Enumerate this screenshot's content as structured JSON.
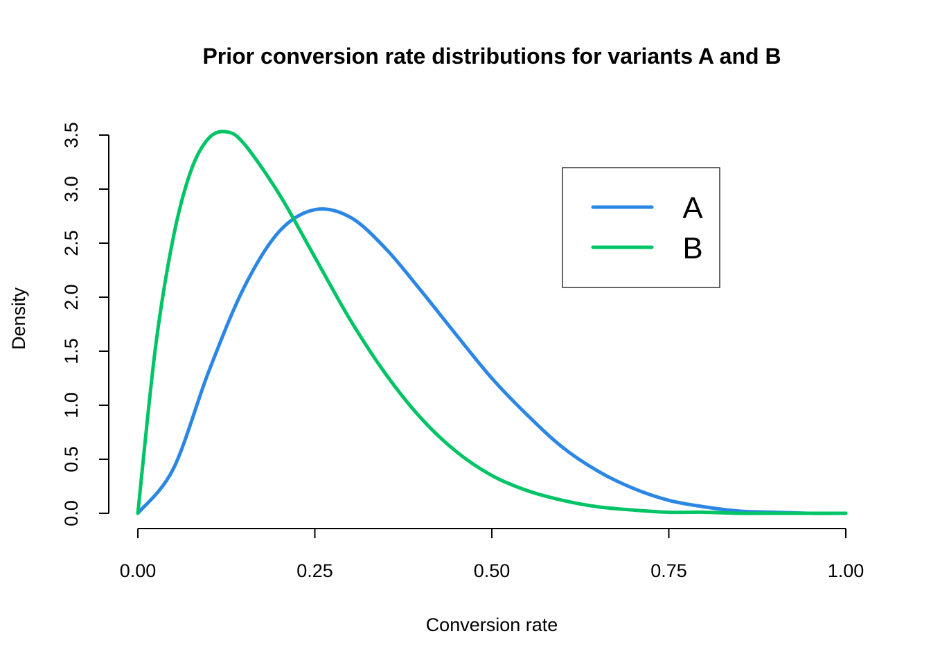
{
  "chart_data": {
    "type": "line",
    "title": "Prior conversion rate distributions for variants A and B",
    "xlabel": "Conversion rate",
    "ylabel": "Density",
    "xlim": [
      0,
      1
    ],
    "ylim": [
      0,
      3.5
    ],
    "x_ticks": [
      0,
      0.25,
      0.5,
      0.75,
      1
    ],
    "x_tick_labels": [
      "0.00",
      "0.25",
      "0.50",
      "0.75",
      "1.00"
    ],
    "y_ticks": [
      0,
      0.5,
      1,
      1.5,
      2,
      2.5,
      3,
      3.5
    ],
    "y_tick_labels": [
      "0.0",
      "0.5",
      "1.0",
      "1.5",
      "2.0",
      "2.5",
      "3.0",
      "3.5"
    ],
    "grid": false,
    "legend_position": "top-right",
    "series": [
      {
        "name": "A",
        "color": "#2B87E3",
        "x": [
          0,
          0.05,
          0.1,
          0.15,
          0.2,
          0.25,
          0.3,
          0.35,
          0.4,
          0.45,
          0.5,
          0.55,
          0.6,
          0.65,
          0.7,
          0.75,
          0.8,
          0.85,
          0.9,
          0.95,
          1
        ],
        "y": [
          0,
          0.41,
          1.31,
          2.09,
          2.61,
          2.81,
          2.74,
          2.45,
          2.06,
          1.65,
          1.25,
          0.91,
          0.61,
          0.39,
          0.23,
          0.12,
          0.06,
          0.02,
          0.01,
          0,
          0
        ]
      },
      {
        "name": "B",
        "color": "#00C465",
        "x": [
          0,
          0.025,
          0.05,
          0.075,
          0.1,
          0.125,
          0.15,
          0.2,
          0.25,
          0.3,
          0.35,
          0.4,
          0.45,
          0.5,
          0.55,
          0.6,
          0.65,
          0.7,
          0.75,
          0.8,
          0.85,
          0.9,
          0.95,
          1
        ],
        "y": [
          0,
          1.54,
          2.55,
          3.17,
          3.47,
          3.53,
          3.42,
          2.95,
          2.37,
          1.79,
          1.29,
          0.88,
          0.57,
          0.35,
          0.21,
          0.12,
          0.06,
          0.03,
          0.01,
          0.01,
          0,
          0,
          0,
          0
        ]
      }
    ]
  }
}
